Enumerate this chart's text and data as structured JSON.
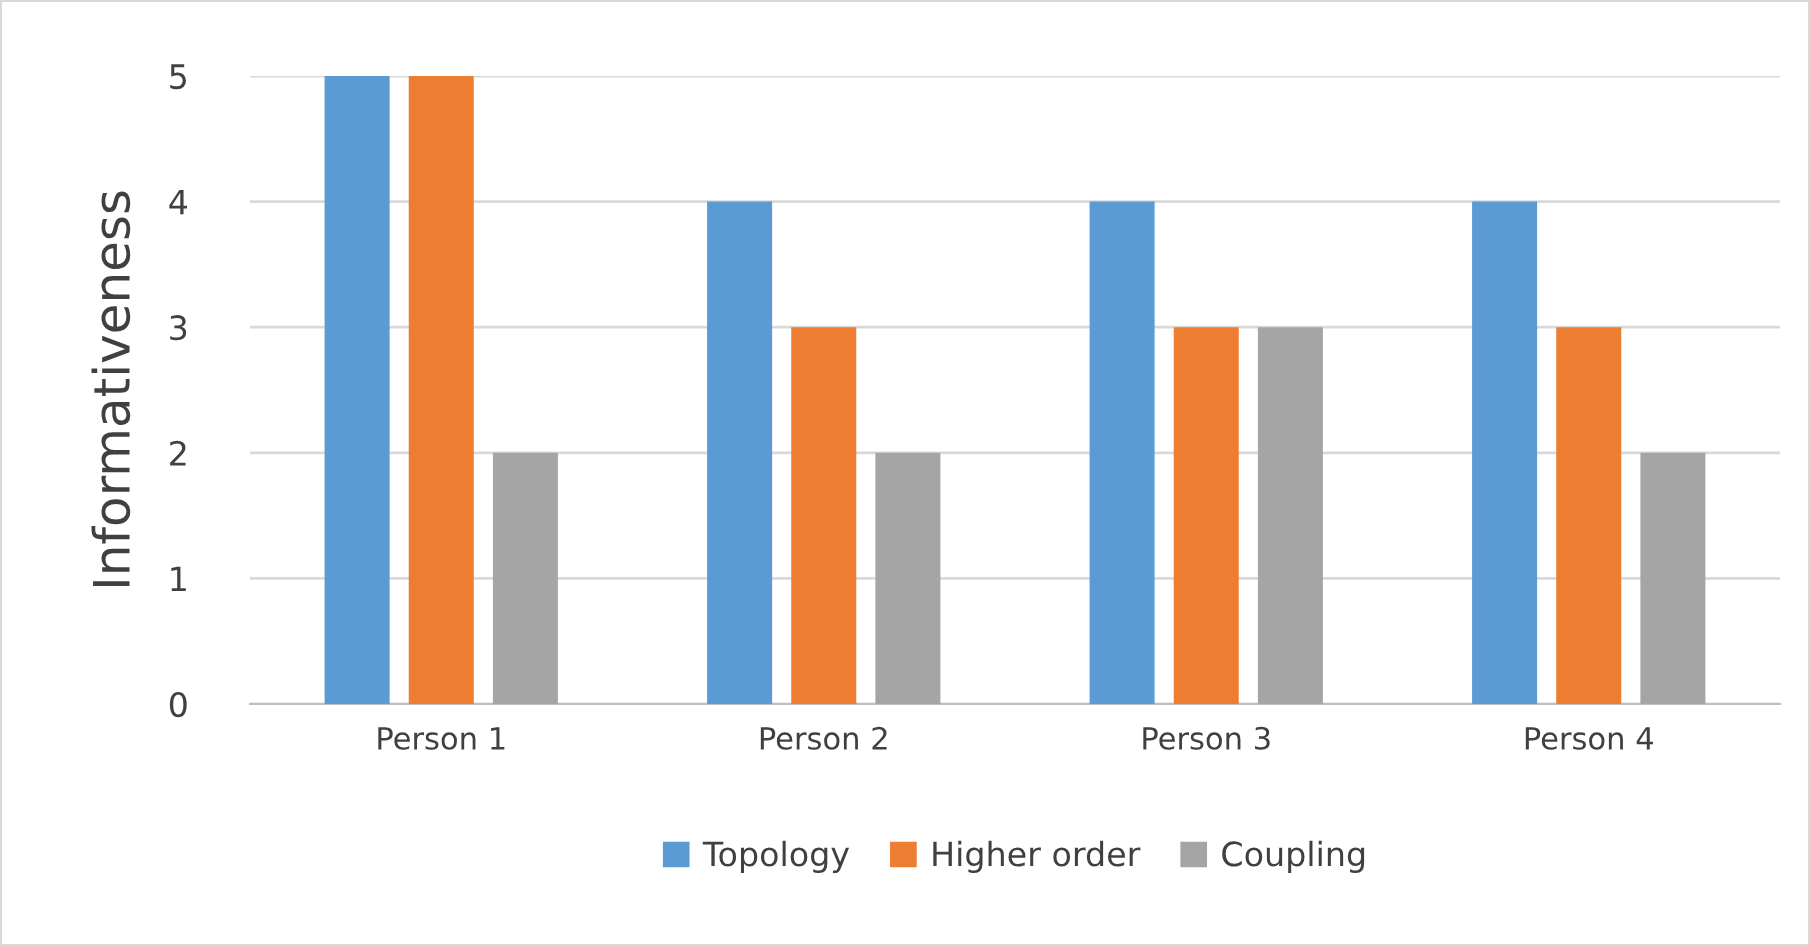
{
  "chart_data": {
    "type": "bar",
    "ylabel": "Informativeness",
    "categories": [
      "Person 1",
      "Person 2",
      "Person 3",
      "Person 4"
    ],
    "series": [
      {
        "name": "Topology",
        "color": "#5b9bd5",
        "values": [
          5,
          4,
          4,
          4
        ]
      },
      {
        "name": "Higher order",
        "color": "#ed7d31",
        "values": [
          5,
          3,
          3,
          3
        ]
      },
      {
        "name": "Coupling",
        "color": "#a5a5a5",
        "values": [
          2,
          2,
          3,
          2
        ]
      }
    ],
    "ylim": [
      0,
      5
    ],
    "yticks": [
      0,
      1,
      2,
      3,
      4,
      5
    ],
    "grid": "y",
    "legend": "bottom"
  }
}
